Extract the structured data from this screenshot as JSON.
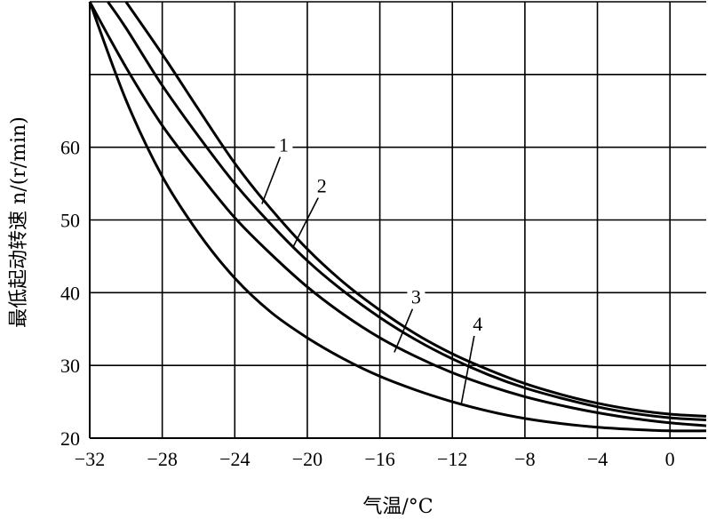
{
  "chart_data": {
    "type": "line",
    "title": "",
    "xlabel": "气温/°C",
    "ylabel": "最低起动转速 n/(r/min)",
    "xlim": [
      -32,
      2
    ],
    "ylim": [
      20,
      80
    ],
    "grid": true,
    "x_ticks": [
      -32,
      -28,
      -24,
      -20,
      -16,
      -12,
      -8,
      -4,
      0
    ],
    "x_tick_labels": [
      "−32",
      "−28",
      "−24",
      "−20",
      "−16",
      "−12",
      "−8",
      "−4",
      "0"
    ],
    "y_ticks": [
      20,
      30,
      40,
      50,
      60
    ],
    "y_tick_labels": [
      "20",
      "30",
      "40",
      "50",
      "60"
    ],
    "series": [
      {
        "name": "1",
        "x": [
          -30,
          -28,
          -26,
          -24,
          -22,
          -20,
          -18,
          -16,
          -14,
          -12,
          -10,
          -8,
          -6,
          -4,
          -2,
          0,
          2
        ],
        "values": [
          80,
          72.8,
          65.2,
          57.8,
          51.5,
          46,
          41.4,
          37.6,
          34.3,
          31.6,
          29.4,
          27.5,
          26,
          24.8,
          23.9,
          23.3,
          23
        ]
      },
      {
        "name": "2",
        "x": [
          -31,
          -30,
          -28,
          -26,
          -24,
          -22,
          -20,
          -18,
          -16,
          -14,
          -12,
          -10,
          -8,
          -6,
          -4,
          -2,
          0,
          2
        ],
        "values": [
          80,
          76.4,
          68.5,
          61.5,
          55,
          49.4,
          44.4,
          40.2,
          36.6,
          33.5,
          30.9,
          28.7,
          26.9,
          25.5,
          24.3,
          23.4,
          22.8,
          22.5
        ]
      },
      {
        "name": "3",
        "x": [
          -32,
          -30,
          -28,
          -26,
          -24,
          -22,
          -20,
          -18,
          -16,
          -14,
          -12,
          -10,
          -8,
          -6,
          -4,
          -2,
          0,
          2
        ],
        "values": [
          80,
          71,
          63,
          56.4,
          50.3,
          45.3,
          40.8,
          37,
          33.8,
          31.2,
          29,
          27.2,
          25.7,
          24.5,
          23.5,
          22.7,
          22.1,
          21.7
        ]
      },
      {
        "name": "4",
        "x": [
          -32,
          -30,
          -28,
          -26,
          -24,
          -22,
          -20,
          -18,
          -16,
          -14,
          -12,
          -10,
          -8,
          -6,
          -4,
          -2,
          0,
          2
        ],
        "values": [
          80,
          66.5,
          56,
          48.2,
          42,
          37.3,
          33.8,
          30.9,
          28.5,
          26.6,
          25,
          23.7,
          22.7,
          22,
          21.5,
          21.2,
          21,
          21
        ]
      }
    ],
    "annotations": [
      {
        "series": "1",
        "text": "1",
        "at": [
          -22.5,
          52.2
        ],
        "label_at": [
          -21.3,
          59.4
        ]
      },
      {
        "series": "2",
        "text": "2",
        "at": [
          -20.8,
          46.2
        ],
        "label_at": [
          -19.2,
          53.8
        ]
      },
      {
        "series": "3",
        "text": "3",
        "at": [
          -15.2,
          31.8
        ],
        "label_at": [
          -14,
          38.5
        ]
      },
      {
        "series": "4",
        "text": "4",
        "at": [
          -11.5,
          24.8
        ],
        "label_at": [
          -10.6,
          34.8
        ]
      }
    ]
  }
}
